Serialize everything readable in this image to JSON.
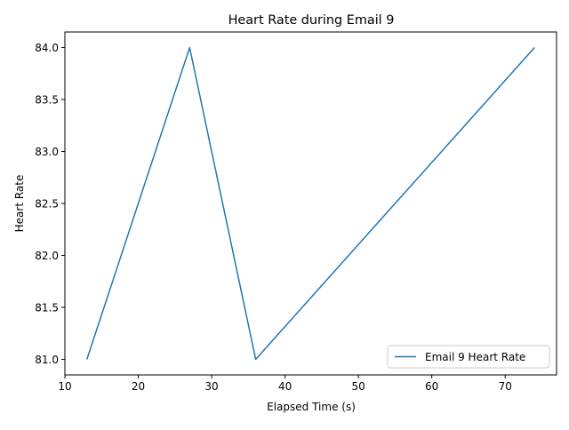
{
  "chart_data": {
    "type": "line",
    "title": "Heart Rate during Email 9",
    "xlabel": "Elapsed Time (s)",
    "ylabel": "Heart Rate",
    "xlim": [
      10.0,
      77.0
    ],
    "ylim": [
      80.85,
      84.15
    ],
    "xticks": [
      10,
      20,
      30,
      40,
      50,
      60,
      70
    ],
    "yticks": [
      81.0,
      81.5,
      82.0,
      82.5,
      83.0,
      83.5,
      84.0
    ],
    "ytick_format": 1,
    "grid": false,
    "legend_position": "lower-right",
    "series": [
      {
        "name": "Email 9 Heart Rate",
        "color": "#1f77b4",
        "x": [
          13,
          27,
          36,
          74
        ],
        "y": [
          81,
          84,
          81,
          84
        ]
      }
    ]
  }
}
